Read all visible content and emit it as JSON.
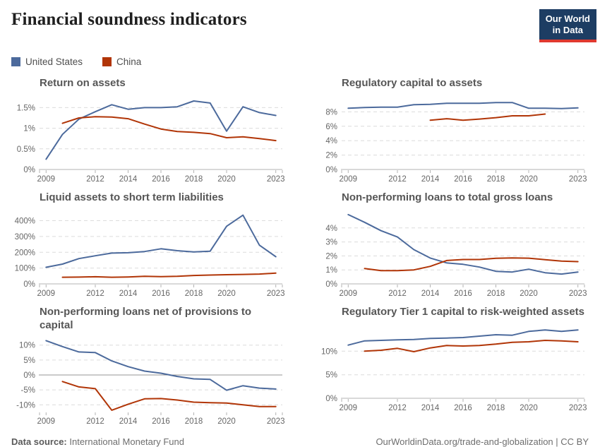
{
  "header": {
    "title": "Financial soundness indicators"
  },
  "logo": {
    "line1": "Our World",
    "line2": "in Data",
    "bg_color": "#1d3d63",
    "accent_color": "#e0392f"
  },
  "legend": {
    "items": [
      {
        "label": "United States",
        "color": "#4C6A9C"
      },
      {
        "label": "China",
        "color": "#B13507"
      }
    ]
  },
  "footer": {
    "source_label": "Data source:",
    "source_value": "International Monetary Fund",
    "credit": "OurWorldinData.org/trade-and-globalization | CC BY"
  },
  "chart_data": [
    {
      "type": "line",
      "title": "Return on assets",
      "xlim": [
        2008.6,
        2023.4
      ],
      "ylim": [
        0,
        1.78
      ],
      "yticks": [
        {
          "value": 0,
          "label": "0%"
        },
        {
          "value": 0.5,
          "label": "0.5%"
        },
        {
          "value": 1,
          "label": "1%"
        },
        {
          "value": 1.5,
          "label": "1.5%"
        }
      ],
      "xticks": [
        2009,
        2012,
        2014,
        2016,
        2018,
        2020,
        2023
      ],
      "series": [
        {
          "name": "United States",
          "x": [
            2009,
            2010,
            2011,
            2012,
            2013,
            2014,
            2015,
            2016,
            2017,
            2018,
            2019,
            2020,
            2021,
            2022,
            2023
          ],
          "values": [
            0.25,
            0.85,
            1.22,
            1.4,
            1.57,
            1.46,
            1.5,
            1.5,
            1.52,
            1.66,
            1.61,
            0.93,
            1.52,
            1.38,
            1.31
          ]
        },
        {
          "name": "China",
          "x": [
            2010,
            2011,
            2012,
            2013,
            2014,
            2015,
            2016,
            2017,
            2018,
            2019,
            2020,
            2021,
            2022,
            2023
          ],
          "values": [
            1.12,
            1.25,
            1.28,
            1.27,
            1.23,
            1.1,
            0.98,
            0.92,
            0.9,
            0.87,
            0.77,
            0.79,
            0.75,
            0.7
          ]
        }
      ]
    },
    {
      "type": "line",
      "title": "Regulatory capital to assets",
      "xlim": [
        2008.6,
        2023.4
      ],
      "ylim": [
        0,
        10.2
      ],
      "yticks": [
        {
          "value": 0,
          "label": "0%"
        },
        {
          "value": 2,
          "label": "2%"
        },
        {
          "value": 4,
          "label": "4%"
        },
        {
          "value": 6,
          "label": "6%"
        },
        {
          "value": 8,
          "label": "8%"
        }
      ],
      "xticks": [
        2009,
        2012,
        2014,
        2016,
        2018,
        2020,
        2023
      ],
      "series": [
        {
          "name": "United States",
          "x": [
            2009,
            2010,
            2011,
            2012,
            2013,
            2014,
            2015,
            2016,
            2017,
            2018,
            2019,
            2020,
            2021,
            2022,
            2023
          ],
          "values": [
            8.5,
            8.6,
            8.65,
            8.65,
            9.0,
            9.05,
            9.2,
            9.2,
            9.2,
            9.3,
            9.3,
            8.5,
            8.5,
            8.45,
            8.55
          ]
        },
        {
          "name": "China",
          "x": [
            2014,
            2015,
            2016,
            2017,
            2018,
            2019,
            2020,
            2021
          ],
          "values": [
            6.85,
            7.05,
            6.85,
            7.0,
            7.2,
            7.45,
            7.45,
            7.7
          ]
        }
      ]
    },
    {
      "type": "line",
      "title": "Liquid assets to short term liabilities",
      "xlim": [
        2008.6,
        2023.4
      ],
      "ylim": [
        0,
        465
      ],
      "yticks": [
        {
          "value": 0,
          "label": "0%"
        },
        {
          "value": 100,
          "label": "100%"
        },
        {
          "value": 200,
          "label": "200%"
        },
        {
          "value": 300,
          "label": "300%"
        },
        {
          "value": 400,
          "label": "400%"
        }
      ],
      "xticks": [
        2009,
        2012,
        2014,
        2016,
        2018,
        2020,
        2023
      ],
      "series": [
        {
          "name": "United States",
          "x": [
            2009,
            2010,
            2011,
            2012,
            2013,
            2014,
            2015,
            2016,
            2017,
            2018,
            2019,
            2020,
            2021,
            2022,
            2023
          ],
          "values": [
            105,
            125,
            160,
            178,
            195,
            197,
            205,
            222,
            210,
            202,
            207,
            365,
            435,
            245,
            172
          ]
        },
        {
          "name": "China",
          "x": [
            2010,
            2011,
            2012,
            2013,
            2014,
            2015,
            2016,
            2017,
            2018,
            2019,
            2020,
            2021,
            2022,
            2023
          ],
          "values": [
            42,
            43,
            45,
            42,
            44,
            48,
            46,
            48,
            53,
            56,
            58,
            60,
            62,
            68
          ]
        }
      ]
    },
    {
      "type": "line",
      "title": "Non-performing loans to total gross loans",
      "xlim": [
        2008.6,
        2023.4
      ],
      "ylim": [
        0,
        5.25
      ],
      "yticks": [
        {
          "value": 0,
          "label": "0%"
        },
        {
          "value": 1,
          "label": "1%"
        },
        {
          "value": 2,
          "label": "2%"
        },
        {
          "value": 3,
          "label": "3%"
        },
        {
          "value": 4,
          "label": "4%"
        }
      ],
      "xticks": [
        2009,
        2012,
        2014,
        2016,
        2018,
        2020,
        2023
      ],
      "series": [
        {
          "name": "United States",
          "x": [
            2009,
            2010,
            2011,
            2012,
            2013,
            2014,
            2015,
            2016,
            2017,
            2018,
            2019,
            2020,
            2021,
            2022,
            2023
          ],
          "values": [
            4.95,
            4.4,
            3.8,
            3.35,
            2.45,
            1.85,
            1.5,
            1.4,
            1.2,
            0.9,
            0.85,
            1.05,
            0.8,
            0.7,
            0.85
          ]
        },
        {
          "name": "China",
          "x": [
            2010,
            2011,
            2012,
            2013,
            2014,
            2015,
            2016,
            2017,
            2018,
            2019,
            2020,
            2021,
            2022,
            2023
          ],
          "values": [
            1.1,
            0.95,
            0.95,
            1.0,
            1.25,
            1.67,
            1.74,
            1.74,
            1.83,
            1.86,
            1.84,
            1.73,
            1.63,
            1.59
          ]
        }
      ]
    },
    {
      "type": "line",
      "title": "Non-performing loans net of provisions to capital",
      "xlim": [
        2008.6,
        2023.4
      ],
      "ylim": [
        -12.3,
        12.3
      ],
      "yticks": [
        {
          "value": -10,
          "label": "-10%"
        },
        {
          "value": -5,
          "label": "-5%"
        },
        {
          "value": 0,
          "label": "0%"
        },
        {
          "value": 5,
          "label": "5%"
        },
        {
          "value": 10,
          "label": "10%"
        }
      ],
      "xticks": [
        2009,
        2012,
        2014,
        2016,
        2018,
        2020,
        2023
      ],
      "series": [
        {
          "name": "United States",
          "x": [
            2009,
            2010,
            2011,
            2012,
            2013,
            2014,
            2015,
            2016,
            2017,
            2018,
            2019,
            2020,
            2021,
            2022,
            2023
          ],
          "values": [
            11.5,
            9.5,
            7.7,
            7.5,
            4.7,
            2.8,
            1.3,
            0.6,
            -0.5,
            -1.3,
            -1.5,
            -5.1,
            -3.6,
            -4.4,
            -4.7
          ]
        },
        {
          "name": "China",
          "x": [
            2010,
            2011,
            2012,
            2013,
            2014,
            2015,
            2016,
            2017,
            2018,
            2019,
            2020,
            2021,
            2022,
            2023
          ],
          "values": [
            -2.2,
            -4.0,
            -4.6,
            -11.8,
            -9.8,
            -8.0,
            -7.9,
            -8.4,
            -9.1,
            -9.3,
            -9.4,
            -10.0,
            -10.6,
            -10.6
          ]
        }
      ]
    },
    {
      "type": "line",
      "title": "Regulatory Tier 1 capital to risk-weighted assets",
      "xlim": [
        2008.6,
        2023.4
      ],
      "ylim": [
        0,
        15.6
      ],
      "yticks": [
        {
          "value": 0,
          "label": "0%"
        },
        {
          "value": 5,
          "label": "5%"
        },
        {
          "value": 10,
          "label": "10%"
        }
      ],
      "xticks": [
        2009,
        2012,
        2014,
        2016,
        2018,
        2020,
        2023
      ],
      "series": [
        {
          "name": "United States",
          "x": [
            2009,
            2010,
            2011,
            2012,
            2013,
            2014,
            2015,
            2016,
            2017,
            2018,
            2019,
            2020,
            2021,
            2022,
            2023
          ],
          "values": [
            11.3,
            12.2,
            12.3,
            12.4,
            12.5,
            12.7,
            12.8,
            12.9,
            13.2,
            13.5,
            13.4,
            14.2,
            14.5,
            14.2,
            14.5
          ]
        },
        {
          "name": "China",
          "x": [
            2010,
            2011,
            2012,
            2013,
            2014,
            2015,
            2016,
            2017,
            2018,
            2019,
            2020,
            2021,
            2022,
            2023
          ],
          "values": [
            10.0,
            10.2,
            10.6,
            9.9,
            10.7,
            11.2,
            11.1,
            11.2,
            11.5,
            11.9,
            12.0,
            12.3,
            12.2,
            12.0
          ]
        }
      ]
    }
  ]
}
